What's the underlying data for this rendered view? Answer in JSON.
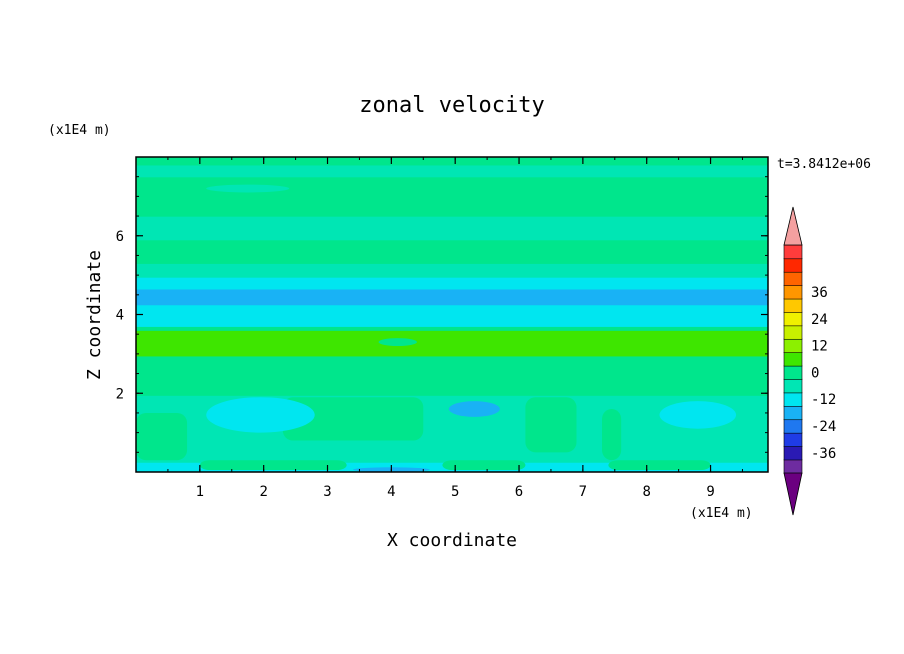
{
  "chart_data": {
    "type": "heatmap",
    "title": "zonal velocity",
    "xlabel": "X coordinate",
    "ylabel": "Z coordinate",
    "x_units": "(x1E4 m)",
    "y_units": "(x1E4 m)",
    "time_label": "t=3.8412e+06",
    "xlim": [
      0,
      9.9
    ],
    "ylim": [
      0,
      8
    ],
    "x_ticks": [
      1,
      2,
      3,
      4,
      5,
      6,
      7,
      8,
      9
    ],
    "y_ticks": [
      2,
      4,
      6
    ],
    "colorbar": {
      "ticks": [
        36,
        24,
        12,
        0,
        -12,
        -24,
        -36
      ],
      "levels": [
        -42,
        -36,
        -30,
        -24,
        -18,
        -12,
        -6,
        0,
        6,
        12,
        18,
        24,
        30,
        36,
        42
      ],
      "colors": [
        "#6b0080",
        "#6e2ca0",
        "#2a1ab4",
        "#1f3ce6",
        "#1f78f0",
        "#19b2f5",
        "#00e6f0",
        "#00e6b4",
        "#00e68c",
        "#3ee600",
        "#8cf000",
        "#c8f000",
        "#f0f000",
        "#ffc800",
        "#ff9600",
        "#ff6400",
        "#ff2800",
        "#ff3c3c",
        "#f4a0a0"
      ]
    },
    "z_bands": [
      {
        "from": 0.0,
        "to": 0.25,
        "value": -10
      },
      {
        "from": 0.25,
        "to": 1.95,
        "value": -4
      },
      {
        "from": 1.95,
        "to": 2.3,
        "value": 2
      },
      {
        "from": 2.3,
        "to": 2.95,
        "value": 5
      },
      {
        "from": 2.95,
        "to": 3.6,
        "value": 11
      },
      {
        "from": 3.6,
        "to": 3.7,
        "value": 5
      },
      {
        "from": 3.7,
        "to": 4.25,
        "value": -10
      },
      {
        "from": 4.25,
        "to": 4.65,
        "value": -16
      },
      {
        "from": 4.65,
        "to": 4.95,
        "value": -10
      },
      {
        "from": 4.95,
        "to": 5.3,
        "value": -3
      },
      {
        "from": 5.3,
        "to": 5.9,
        "value": 2
      },
      {
        "from": 5.9,
        "to": 6.5,
        "value": -3
      },
      {
        "from": 6.5,
        "to": 7.0,
        "value": 2
      },
      {
        "from": 7.0,
        "to": 7.5,
        "value": 5
      },
      {
        "from": 7.5,
        "to": 7.8,
        "value": -3
      },
      {
        "from": 7.8,
        "to": 8.0,
        "value": 2
      }
    ],
    "features": [
      {
        "shape": "band",
        "x": [
          0.0,
          0.8
        ],
        "y": [
          0.3,
          1.5
        ],
        "value": 2
      },
      {
        "shape": "band",
        "x": [
          2.3,
          4.5
        ],
        "y": [
          0.8,
          1.9
        ],
        "value": 5
      },
      {
        "shape": "band",
        "x": [
          6.1,
          6.9
        ],
        "y": [
          0.5,
          1.9
        ],
        "value": 5
      },
      {
        "shape": "band",
        "x": [
          7.3,
          7.6
        ],
        "y": [
          0.3,
          1.6
        ],
        "value": 2
      },
      {
        "shape": "ellipse",
        "x": [
          1.1,
          2.8
        ],
        "y": [
          1.0,
          1.9
        ],
        "value": -10
      },
      {
        "shape": "ellipse",
        "x": [
          4.9,
          5.7
        ],
        "y": [
          1.4,
          1.8
        ],
        "value": -16
      },
      {
        "shape": "ellipse",
        "x": [
          8.2,
          9.4
        ],
        "y": [
          1.1,
          1.8
        ],
        "value": -10
      },
      {
        "shape": "band",
        "x": [
          1.0,
          3.3
        ],
        "y": [
          0.05,
          0.3
        ],
        "value": 5
      },
      {
        "shape": "band",
        "x": [
          4.8,
          6.1
        ],
        "y": [
          0.05,
          0.3
        ],
        "value": 5
      },
      {
        "shape": "band",
        "x": [
          7.4,
          9.0
        ],
        "y": [
          0.05,
          0.3
        ],
        "value": 5
      },
      {
        "shape": "ellipse",
        "x": [
          3.4,
          4.6
        ],
        "y": [
          0.0,
          0.12
        ],
        "value": -16
      },
      {
        "shape": "ellipse",
        "x": [
          3.8,
          4.4
        ],
        "y": [
          3.2,
          3.4
        ],
        "value": 2
      },
      {
        "shape": "ellipse",
        "x": [
          6.6,
          8.6
        ],
        "y": [
          7.05,
          7.35
        ],
        "value": 5
      },
      {
        "shape": "ellipse",
        "x": [
          1.1,
          2.4
        ],
        "y": [
          7.1,
          7.3
        ],
        "value": -3
      }
    ]
  }
}
